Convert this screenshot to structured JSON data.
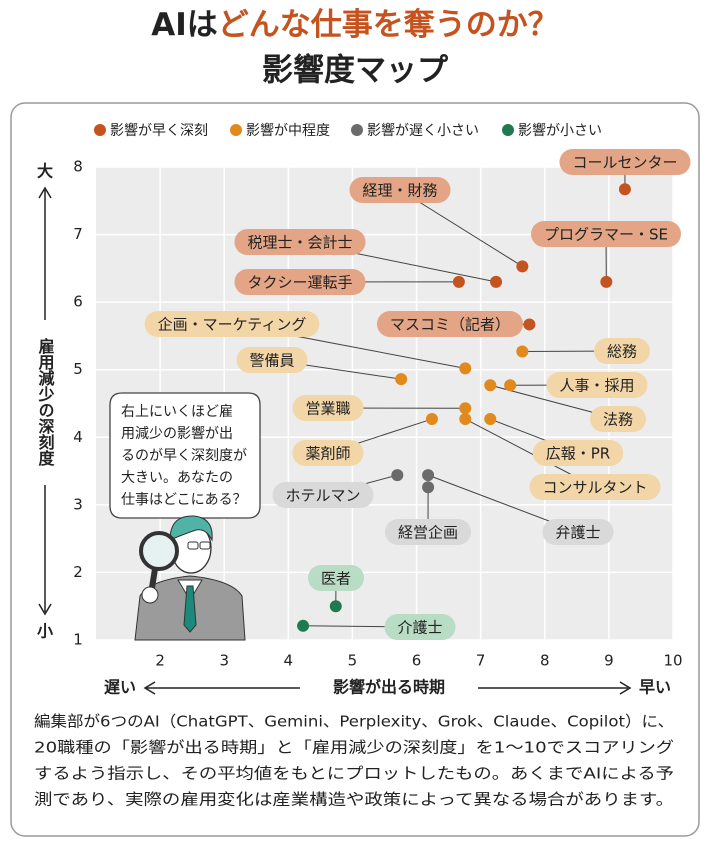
{
  "chart_data": {
    "type": "scatter",
    "title": [
      "AIは",
      "どんな仕事を奪うのか？"
    ],
    "subtitle": "影響度マップ",
    "x_label": "影響が出る時期",
    "x_low": "遅い",
    "x_high": "早い",
    "y_label": "雇用減少の深刻度",
    "y_high": "大",
    "y_low": "小",
    "xlim": [
      1,
      10
    ],
    "xticks": [
      2,
      3,
      4,
      5,
      6,
      7,
      8,
      9,
      10
    ],
    "ylim": [
      1,
      8
    ],
    "yticks": [
      1,
      2,
      3,
      4,
      5,
      6,
      7,
      8
    ],
    "grid": true,
    "legend": "top",
    "series": [
      {
        "name": "影響が早く深刻",
        "color": "#c4531f",
        "label_fill": "#e3a585",
        "labels": [
          "コールセンター",
          "経理・財務",
          "プログラマー・SE",
          "税理士・会計士",
          "タクシー運転手",
          "マスコミ（記者）"
        ],
        "x": [
          9.25,
          7.65,
          8.96,
          7.24,
          6.66,
          7.76
        ],
        "values": [
          7.67,
          6.53,
          6.3,
          6.3,
          6.3,
          5.67
        ]
      },
      {
        "name": "影響が中程度",
        "color": "#e0891c",
        "label_fill": "#f3d6a8",
        "labels": [
          "企画・マーケティング",
          "総務",
          "警備員",
          "人事・採用",
          "法務",
          "営業職",
          "広報・PR",
          "薬剤師",
          "コンサルタント"
        ],
        "x": [
          6.76,
          7.65,
          5.76,
          7.46,
          7.15,
          6.76,
          7.15,
          6.24,
          6.76
        ],
        "values": [
          5.02,
          5.27,
          4.86,
          4.77,
          4.77,
          4.43,
          4.27,
          4.27,
          4.27
        ]
      },
      {
        "name": "影響が遅く小さい",
        "color": "#6b6b6b",
        "label_fill": "#d9d9d9",
        "labels": [
          "ホテルマン",
          "弁護士",
          "経営企画"
        ],
        "x": [
          5.7,
          6.18,
          6.18
        ],
        "values": [
          3.44,
          3.44,
          3.26
        ]
      },
      {
        "name": "影響が小さい",
        "color": "#1f7a4f",
        "label_fill": "#b9dcc4",
        "labels": [
          "医者",
          "介護士"
        ],
        "x": [
          4.74,
          4.23
        ],
        "values": [
          1.5,
          1.21
        ]
      }
    ],
    "annotation": [
      "右上にいくほど雇",
      "用減少の影響が出",
      "るのが早く深刻度が",
      "大きい。あなたの",
      "仕事はどこにある？"
    ],
    "note": [
      "編集部が6つのAI（ChatGPT、Gemini、Perplexity、Grok、Claude、Copilot）に、",
      "20職種の「影響が出る時期」と「雇用減少の深刻度」を1〜10でスコアリング",
      "するよう指示し、その平均値をもとにプロットしたもの。あくまでAIによる予",
      "測であり、実際の雇用変化は産業構造や政策によって異なる場合があります。"
    ]
  }
}
